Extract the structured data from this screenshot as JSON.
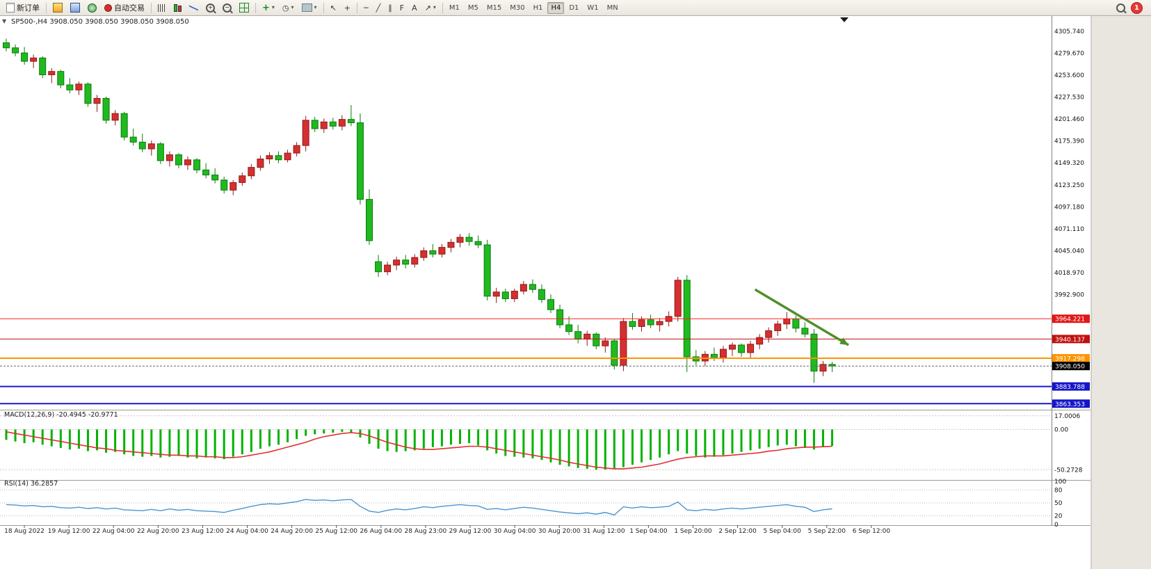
{
  "toolbar": {
    "new_order_label": "新订单",
    "auto_trading_label": "自动交易",
    "text_tool": "A",
    "notification_count": "1",
    "timeframes": [
      "M1",
      "M5",
      "M15",
      "M30",
      "H1",
      "H4",
      "D1",
      "W1",
      "MN"
    ],
    "active_timeframe": "H4",
    "icons": {
      "plus": "+",
      "minus": "−",
      "dropdown": "▾",
      "clock": "◷",
      "cursor": "↖",
      "crosshair": "+",
      "hline": "─",
      "trendline": "╱",
      "channel": "∥",
      "fibonacci": "F",
      "arrows": "↗",
      "oneclick": "▼"
    }
  },
  "chart": {
    "symbol_label": "SP500-,H4  3908.050 3908.050 3908.050 3908.050",
    "macd_label": "MACD(12,26,9) -20.4945 -20.9771",
    "rsi_label": "RSI(14) 36.2857"
  },
  "chart_data": {
    "type": "candlestick",
    "symbol": "SP500-",
    "timeframe": "H4",
    "colors": {
      "bull": "#d62f2f",
      "bull_border": "#8f1a1a",
      "bear": "#1fba1f",
      "bear_border": "#0d7a0d",
      "macd_histogram": "#00b300",
      "macd_signal": "#e03030",
      "rsi_line": "#4a94d0",
      "level_red": "#ff2020",
      "level_dark_red": "#c01010",
      "level_orange": "#ff9400",
      "level_blue": "#1818d8",
      "price_badge": "#000000",
      "arrow": "#4f8f29"
    },
    "ylim": [
      3857,
      4323
    ],
    "y_axis_labels": [
      "4305.740",
      "4279.670",
      "4253.600",
      "4227.530",
      "4201.460",
      "4175.390",
      "4149.320",
      "4123.250",
      "4097.180",
      "4071.110",
      "4045.040",
      "4018.970",
      "3992.900"
    ],
    "candles": [
      [
        4292,
        4297,
        4282,
        4286
      ],
      [
        4286,
        4290,
        4276,
        4280
      ],
      [
        4280,
        4287,
        4266,
        4270
      ],
      [
        4270,
        4278,
        4262,
        4274
      ],
      [
        4274,
        4276,
        4250,
        4254
      ],
      [
        4254,
        4262,
        4244,
        4258
      ],
      [
        4258,
        4260,
        4238,
        4242
      ],
      [
        4242,
        4250,
        4232,
        4236
      ],
      [
        4236,
        4246,
        4230,
        4243
      ],
      [
        4243,
        4245,
        4216,
        4220
      ],
      [
        4220,
        4230,
        4210,
        4226
      ],
      [
        4226,
        4228,
        4196,
        4200
      ],
      [
        4200,
        4212,
        4194,
        4208
      ],
      [
        4208,
        4210,
        4176,
        4180
      ],
      [
        4180,
        4190,
        4170,
        4174
      ],
      [
        4174,
        4184,
        4162,
        4166
      ],
      [
        4166,
        4176,
        4158,
        4172
      ],
      [
        4172,
        4174,
        4148,
        4152
      ],
      [
        4152,
        4163,
        4145,
        4159
      ],
      [
        4159,
        4161,
        4143,
        4147
      ],
      [
        4147,
        4157,
        4141,
        4153
      ],
      [
        4153,
        4155,
        4137,
        4141
      ],
      [
        4141,
        4149,
        4131,
        4135
      ],
      [
        4135,
        4143,
        4125,
        4129
      ],
      [
        4129,
        4133,
        4113,
        4117
      ],
      [
        4117,
        4129,
        4111,
        4126
      ],
      [
        4126,
        4138,
        4122,
        4134
      ],
      [
        4134,
        4148,
        4130,
        4144
      ],
      [
        4144,
        4158,
        4140,
        4154
      ],
      [
        4154,
        4162,
        4148,
        4158
      ],
      [
        4158,
        4163,
        4149,
        4153
      ],
      [
        4153,
        4165,
        4150,
        4161
      ],
      [
        4161,
        4174,
        4157,
        4170
      ],
      [
        4170,
        4205,
        4163,
        4200
      ],
      [
        4200,
        4204,
        4186,
        4190
      ],
      [
        4190,
        4202,
        4185,
        4198
      ],
      [
        4198,
        4203,
        4189,
        4193
      ],
      [
        4193,
        4206,
        4188,
        4201
      ],
      [
        4201,
        4218,
        4193,
        4197
      ],
      [
        4197,
        4208,
        4100,
        4106
      ],
      [
        4106,
        4118,
        4052,
        4057
      ],
      [
        4032,
        4040,
        4014,
        4020
      ],
      [
        4020,
        4032,
        4016,
        4028
      ],
      [
        4028,
        4038,
        4022,
        4034
      ],
      [
        4034,
        4040,
        4024,
        4029
      ],
      [
        4029,
        4041,
        4025,
        4037
      ],
      [
        4037,
        4049,
        4033,
        4045
      ],
      [
        4045,
        4053,
        4037,
        4041
      ],
      [
        4041,
        4053,
        4037,
        4049
      ],
      [
        4049,
        4059,
        4043,
        4055
      ],
      [
        4055,
        4065,
        4049,
        4061
      ],
      [
        4061,
        4066,
        4051,
        4056
      ],
      [
        4056,
        4063,
        4048,
        4052
      ],
      [
        4052,
        4058,
        3986,
        3991
      ],
      [
        3991,
        4001,
        3983,
        3996
      ],
      [
        3996,
        4000,
        3984,
        3988
      ],
      [
        3988,
        4000,
        3984,
        3997
      ],
      [
        3997,
        4009,
        3993,
        4005
      ],
      [
        4005,
        4011,
        3995,
        3999
      ],
      [
        3999,
        4005,
        3983,
        3987
      ],
      [
        3987,
        3993,
        3971,
        3975
      ],
      [
        3975,
        3981,
        3953,
        3957
      ],
      [
        3957,
        3967,
        3945,
        3949
      ],
      [
        3949,
        3957,
        3935,
        3940
      ],
      [
        3940,
        3950,
        3932,
        3946
      ],
      [
        3946,
        3948,
        3928,
        3932
      ],
      [
        3932,
        3942,
        3924,
        3938
      ],
      [
        3938,
        3940,
        3904,
        3909
      ],
      [
        3909,
        3965,
        3902,
        3961
      ],
      [
        3961,
        3971,
        3951,
        3955
      ],
      [
        3955,
        3967,
        3949,
        3963
      ],
      [
        3963,
        3969,
        3953,
        3957
      ],
      [
        3957,
        3965,
        3949,
        3961
      ],
      [
        3961,
        3973,
        3955,
        3967
      ],
      [
        3967,
        4014,
        3961,
        4010
      ],
      [
        4010,
        4016,
        3901,
        3919
      ],
      [
        3919,
        3927,
        3909,
        3914
      ],
      [
        3914,
        3926,
        3908,
        3922
      ],
      [
        3922,
        3930,
        3914,
        3918
      ],
      [
        3918,
        3932,
        3912,
        3928
      ],
      [
        3928,
        3936,
        3920,
        3933
      ],
      [
        3933,
        3935,
        3919,
        3924
      ],
      [
        3924,
        3938,
        3918,
        3934
      ],
      [
        3934,
        3946,
        3928,
        3942
      ],
      [
        3942,
        3954,
        3936,
        3950
      ],
      [
        3950,
        3962,
        3944,
        3958
      ],
      [
        3958,
        3972,
        3952,
        3964
      ],
      [
        3964,
        3968,
        3948,
        3953
      ],
      [
        3953,
        3960,
        3942,
        3946
      ],
      [
        3946,
        3952,
        3888,
        3902
      ],
      [
        3902,
        3914,
        3896,
        3910
      ],
      [
        3910,
        3913,
        3901,
        3908.05
      ]
    ],
    "levels": [
      {
        "price": 3964.221,
        "label": "3964.221",
        "line_color": "#ff2020",
        "badge_color": "#e01717",
        "width": 1
      },
      {
        "price": 3940.137,
        "label": "3940.137",
        "line_color": "#c01010",
        "badge_color": "#c01010",
        "width": 1
      },
      {
        "price": 3917.298,
        "label": "3917.298",
        "line_color": "#ff9400",
        "badge_color": "#ff9400",
        "width": 2
      },
      {
        "price": 3883.788,
        "label": "3883.788",
        "line_color": "#1818d8",
        "badge_color": "#1414c8",
        "width": 2
      },
      {
        "price": 3863.353,
        "label": "3863.353",
        "line_color": "#1818d8",
        "badge_color": "#1414c8",
        "width": 2
      }
    ],
    "current_price": {
      "value": 3908.05,
      "label": "3908.050",
      "badge_color": "#000000",
      "line_color": "#666666"
    },
    "annotations": [
      {
        "type": "arrow",
        "from_bar": 82.5,
        "from_price": 3999,
        "to_bar": 92.8,
        "to_price": 3933,
        "color": "#4f8f29"
      }
    ],
    "x_labels": [
      "18 Aug 2022",
      "19 Aug 12:00",
      "22 Aug 04:00",
      "22 Aug 20:00",
      "23 Aug 12:00",
      "24 Aug 04:00",
      "24 Aug 20:00",
      "25 Aug 12:00",
      "26 Aug 04:00",
      "28 Aug 23:00",
      "29 Aug 12:00",
      "30 Aug 04:00",
      "30 Aug 20:00",
      "31 Aug 12:00",
      "1 Sep 04:00",
      "1 Sep 20:00",
      "2 Sep 12:00",
      "5 Sep 04:00",
      "5 Sep 22:00",
      "6 Sep 12:00"
    ],
    "macd": {
      "name": "MACD(12,26,9)",
      "value_main": -20.4945,
      "value_signal": -20.9771,
      "ylim": [
        -56,
        22
      ],
      "axis_values": [
        17.0006,
        0,
        -50.2728
      ],
      "axis_labels": [
        "17.0006",
        "0.00",
        "-50.2728"
      ],
      "histogram": [
        -13,
        -15,
        -17,
        -16,
        -19,
        -21,
        -23,
        -25,
        -24,
        -27,
        -26,
        -29,
        -28,
        -31,
        -33,
        -34,
        -33,
        -35,
        -34,
        -33,
        -35,
        -36,
        -35,
        -36,
        -37,
        -34,
        -31,
        -28,
        -24,
        -21,
        -19,
        -16,
        -12,
        -8,
        -6,
        -5,
        -4,
        -3,
        -4,
        -10,
        -18,
        -24,
        -27,
        -28,
        -27,
        -26,
        -24,
        -22,
        -21,
        -19,
        -18,
        -17,
        -20,
        -26,
        -30,
        -33,
        -34,
        -35,
        -36,
        -38,
        -41,
        -44,
        -46,
        -48,
        -49,
        -50,
        -50,
        -49,
        -47,
        -44,
        -41,
        -38,
        -35,
        -31,
        -27,
        -30,
        -33,
        -35,
        -34,
        -32,
        -30,
        -28,
        -26,
        -24,
        -22,
        -20,
        -19,
        -21,
        -23,
        -25,
        -22,
        -20.4945
      ],
      "signal": [
        -3,
        -5,
        -7,
        -9,
        -11,
        -13,
        -15,
        -17,
        -19,
        -21,
        -23,
        -24,
        -26,
        -27,
        -28,
        -29,
        -30,
        -31,
        -32,
        -32,
        -33,
        -33,
        -34,
        -34,
        -35,
        -35,
        -34,
        -32,
        -30,
        -28,
        -25,
        -22,
        -19,
        -16,
        -12,
        -9,
        -7,
        -5,
        -4,
        -5,
        -8,
        -12,
        -16,
        -19,
        -22,
        -24,
        -25,
        -25,
        -24,
        -23,
        -22,
        -21,
        -21,
        -22,
        -24,
        -26,
        -28,
        -30,
        -32,
        -34,
        -36,
        -38,
        -41,
        -43,
        -45,
        -47,
        -48,
        -49,
        -49,
        -48,
        -47,
        -45,
        -43,
        -40,
        -37,
        -35,
        -34,
        -33,
        -33,
        -33,
        -32,
        -31,
        -30,
        -29,
        -27,
        -26,
        -24,
        -23,
        -22,
        -22,
        -21.5,
        -20.9771
      ]
    },
    "rsi": {
      "name": "RSI(14)",
      "value": 36.2857,
      "levels": [
        80,
        50,
        20
      ],
      "axis_labels": [
        "100",
        "80",
        "50",
        "20",
        "0"
      ],
      "axis_values": [
        100,
        80,
        50,
        20,
        0
      ],
      "values": [
        46,
        45,
        43,
        44,
        41,
        42,
        39,
        38,
        40,
        37,
        39,
        36,
        38,
        34,
        33,
        32,
        35,
        32,
        36,
        33,
        35,
        32,
        31,
        30,
        28,
        33,
        37,
        42,
        46,
        48,
        47,
        50,
        53,
        58,
        56,
        57,
        55,
        57,
        58,
        42,
        31,
        28,
        33,
        36,
        34,
        37,
        41,
        39,
        42,
        44,
        46,
        44,
        43,
        35,
        37,
        34,
        37,
        40,
        38,
        35,
        32,
        29,
        27,
        25,
        27,
        24,
        28,
        22,
        41,
        38,
        41,
        39,
        40,
        42,
        52,
        34,
        32,
        35,
        33,
        36,
        38,
        36,
        38,
        40,
        42,
        44,
        46,
        42,
        40,
        30,
        34,
        36.2857
      ]
    }
  }
}
